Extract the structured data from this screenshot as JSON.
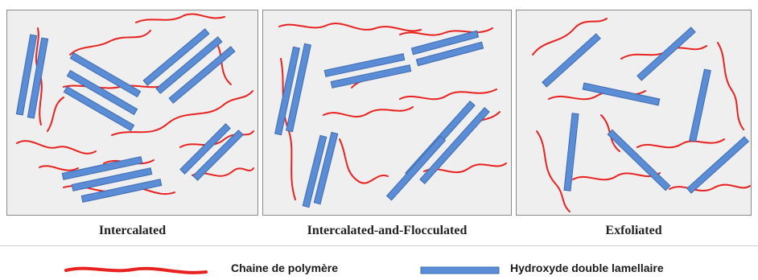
{
  "panels": [
    {
      "caption": "Intercalated"
    },
    {
      "caption": "Intercalated-and-Flocculated"
    },
    {
      "caption": "Exfoliated"
    }
  ],
  "legend": {
    "polymer_chain": "Chaine de polymère",
    "ldh_layer": "Hydroxyde double lamellaire"
  },
  "colors": {
    "polymer": "#e8231f",
    "layer_fill": "#5b8dd6",
    "layer_stroke": "#3d6bb0",
    "panel_bg": "#efefef"
  }
}
